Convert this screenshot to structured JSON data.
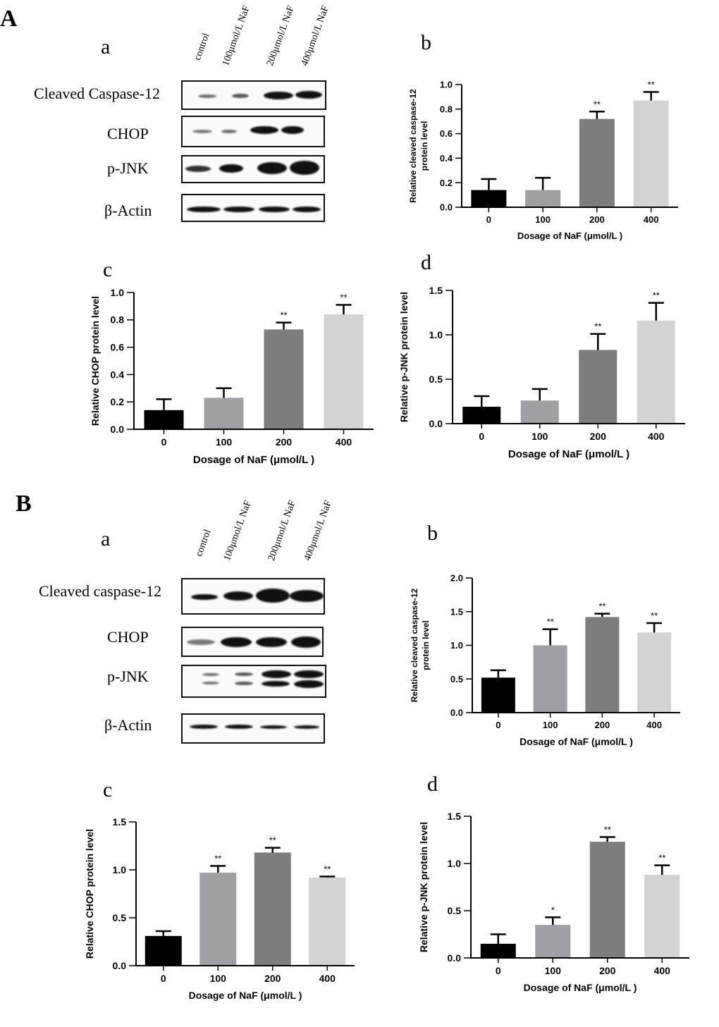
{
  "colors": [
    "#000000",
    "#9f9fa4",
    "#7d7d7d",
    "#d3d3d3"
  ],
  "panels": {
    "A": {
      "letter": "A",
      "blot": {
        "letter": "a",
        "lanes": [
          "control",
          "100μmol/L NaF",
          "200μmol/L NaF",
          "400μmol/L NaF"
        ],
        "proteins": [
          "Cleaved Caspase-12",
          "CHOP",
          "p-JNK",
          "β-Actin"
        ]
      }
    },
    "B": {
      "letter": "B",
      "blot": {
        "letter": "a",
        "lanes": [
          "control",
          "100μmol/L NaF",
          "200μmol/L NaF",
          "400μmol/L NaF"
        ],
        "proteins": [
          "Cleaved caspase-12",
          "CHOP",
          "p-JNK",
          "β-Actin"
        ]
      }
    }
  },
  "chart_data": [
    {
      "id": "A-b",
      "letter": "b",
      "type": "bar",
      "categories": [
        "0",
        "100",
        "200",
        "400"
      ],
      "values": [
        0.14,
        0.14,
        0.72,
        0.87
      ],
      "errors": [
        0.09,
        0.1,
        0.06,
        0.07
      ],
      "annotations": [
        "",
        "",
        "**",
        "**"
      ],
      "ylim": [
        0,
        1.0
      ],
      "yticks": [
        "0.0",
        "0.2",
        "0.4",
        "0.6",
        "0.8",
        "1.0"
      ],
      "ylabel": [
        "Relative cleaved caspase-12",
        "protein level"
      ],
      "xlabel": "Dosage of NaF (μmol/L )"
    },
    {
      "id": "A-c",
      "letter": "c",
      "type": "bar",
      "categories": [
        "0",
        "100",
        "200",
        "400"
      ],
      "values": [
        0.14,
        0.23,
        0.73,
        0.84
      ],
      "errors": [
        0.08,
        0.07,
        0.05,
        0.07
      ],
      "annotations": [
        "",
        "",
        "**",
        "**"
      ],
      "ylim": [
        0,
        1.0
      ],
      "yticks": [
        "0.0",
        "0.2",
        "0.4",
        "0.6",
        "0.8",
        "1.0"
      ],
      "ylabel": [
        "Relative CHOP protein level"
      ],
      "xlabel": "Dosage of NaF (μmol/L )"
    },
    {
      "id": "A-d",
      "letter": "d",
      "type": "bar",
      "categories": [
        "0",
        "100",
        "200",
        "400"
      ],
      "values": [
        0.19,
        0.26,
        0.83,
        1.16
      ],
      "errors": [
        0.12,
        0.13,
        0.18,
        0.2
      ],
      "annotations": [
        "",
        "",
        "**",
        "**"
      ],
      "ylim": [
        0,
        1.5
      ],
      "yticks": [
        "0.0",
        "0.5",
        "1.0",
        "1.5"
      ],
      "ylabel": [
        "Relative p-JNK protein level"
      ],
      "xlabel": "Dosage of NaF (μmol/L )"
    },
    {
      "id": "B-b",
      "letter": "b",
      "type": "bar",
      "categories": [
        "0",
        "100",
        "200",
        "400"
      ],
      "values": [
        0.52,
        1.0,
        1.42,
        1.19
      ],
      "errors": [
        0.11,
        0.24,
        0.05,
        0.14
      ],
      "annotations": [
        "",
        "**",
        "**",
        "**"
      ],
      "ylim": [
        0,
        2.0
      ],
      "yticks": [
        "0.0",
        "0.5",
        "1.0",
        "1.5",
        "2.0"
      ],
      "ylabel": [
        "Relative cleaved caspase-12",
        "protein level"
      ],
      "xlabel": "Dosage of NaF (μmol/L )"
    },
    {
      "id": "B-c",
      "letter": "c",
      "type": "bar",
      "categories": [
        "0",
        "100",
        "200",
        "400"
      ],
      "values": [
        0.31,
        0.97,
        1.18,
        0.92
      ],
      "errors": [
        0.05,
        0.07,
        0.05,
        0.01
      ],
      "annotations": [
        "",
        "**",
        "**",
        "**"
      ],
      "ylim": [
        0,
        1.5
      ],
      "yticks": [
        "0.0",
        "0.5",
        "1.0",
        "1.5"
      ],
      "ylabel": [
        "Relative CHOP protein level"
      ],
      "xlabel": "Dosage of NaF (μmol/L )"
    },
    {
      "id": "B-d",
      "letter": "d",
      "type": "bar",
      "categories": [
        "0",
        "100",
        "200",
        "400"
      ],
      "values": [
        0.15,
        0.35,
        1.23,
        0.88
      ],
      "errors": [
        0.1,
        0.08,
        0.05,
        0.1
      ],
      "annotations": [
        "",
        "*",
        "**",
        "**"
      ],
      "ylim": [
        0,
        1.5
      ],
      "yticks": [
        "0.0",
        "0.5",
        "1.0",
        "1.5"
      ],
      "ylabel": [
        "Relative p-JNK protein level"
      ],
      "xlabel": "Dosage of NaF (μmol/L )"
    }
  ]
}
